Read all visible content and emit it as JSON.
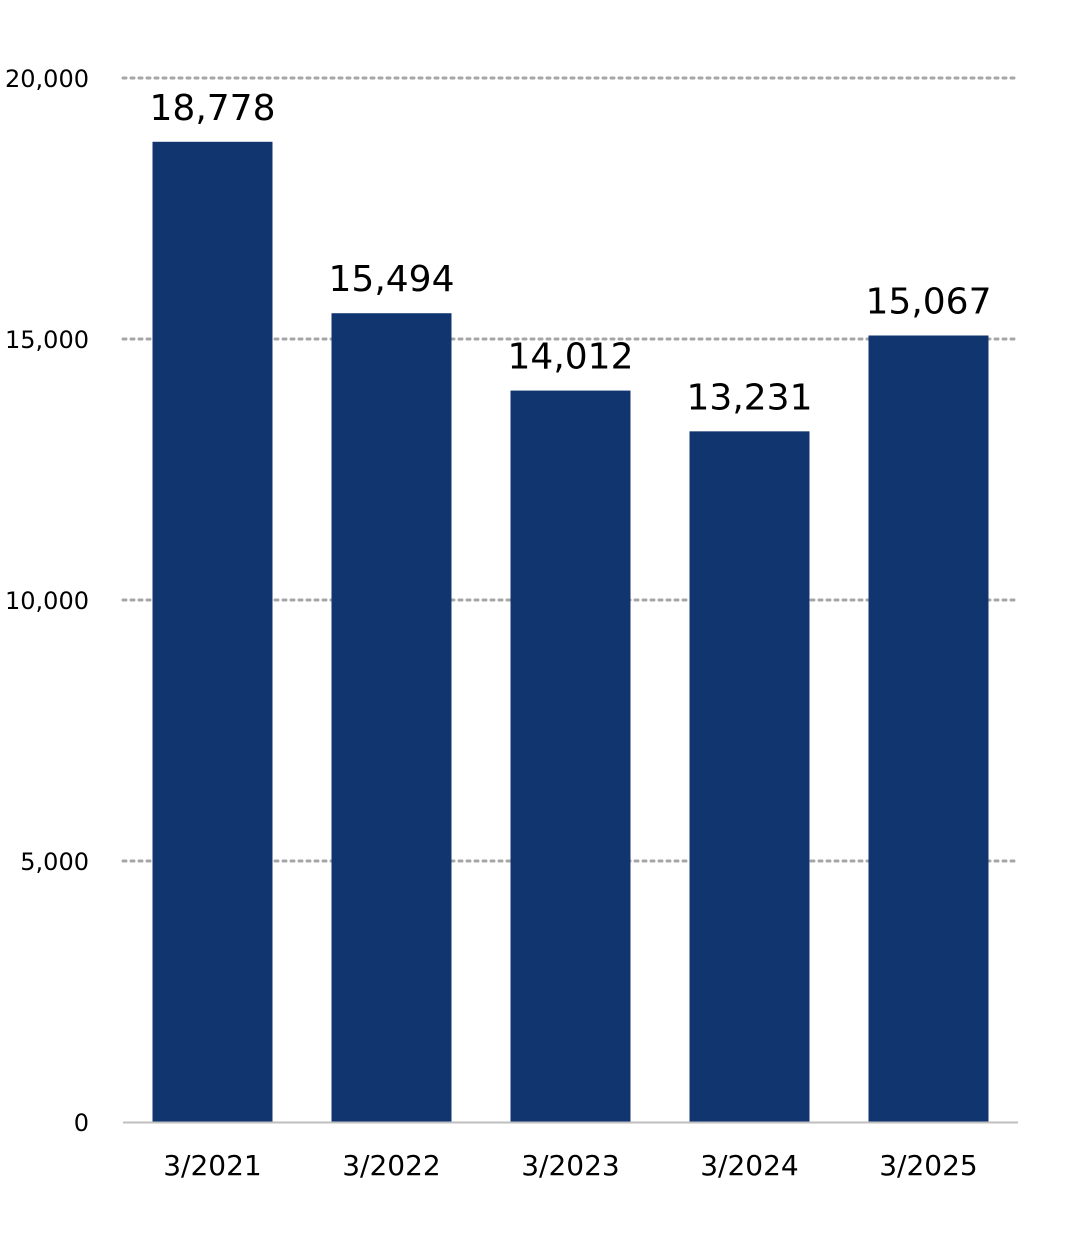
{
  "chart_data": {
    "type": "bar",
    "categories": [
      "3/2021",
      "3/2022",
      "3/2023",
      "3/2024",
      "3/2025"
    ],
    "values": [
      18778,
      15494,
      14012,
      13231,
      15067
    ],
    "data_labels": [
      "18,778",
      "15,494",
      "14,012",
      "13,231",
      "15,067"
    ],
    "y_ticks": [
      0,
      5000,
      10000,
      15000,
      20000
    ],
    "y_tick_labels": [
      "0",
      "5,000",
      "10,000",
      "15,000",
      "20,000"
    ],
    "ylim": [
      0,
      20000
    ],
    "grid": true,
    "grid_style": "dotted",
    "title": "",
    "xlabel": "",
    "ylabel": "",
    "colors": {
      "bar": "#11366f",
      "grid": "#a6a6a6",
      "axis": "#bfbfbf"
    }
  }
}
